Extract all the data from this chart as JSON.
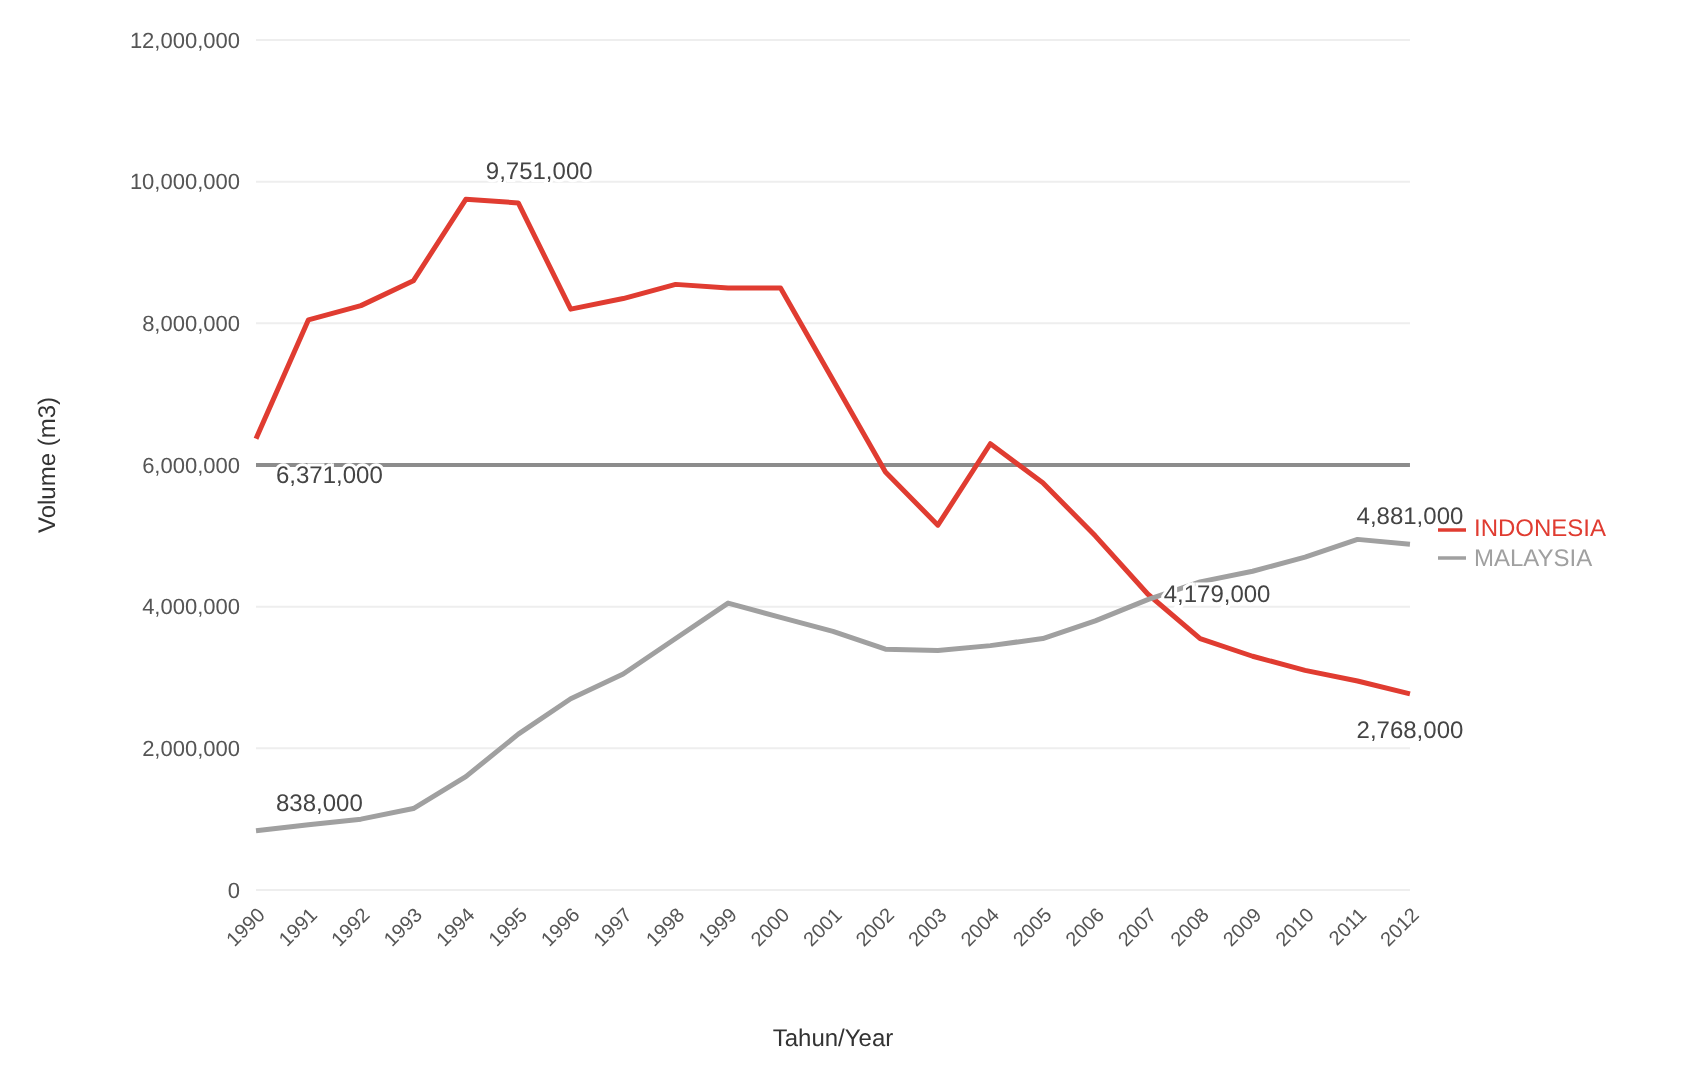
{
  "chart_data": {
    "type": "line",
    "xlabel": "Tahun/Year",
    "ylabel": "Volume (m3)",
    "categories": [
      "1990",
      "1991",
      "1992",
      "1993",
      "1994",
      "1995",
      "1996",
      "1997",
      "1998",
      "1999",
      "2000",
      "2001",
      "2002",
      "2003",
      "2004",
      "2005",
      "2006",
      "2007",
      "2008",
      "2009",
      "2010",
      "2011",
      "2012"
    ],
    "series": [
      {
        "name": "INDONESIA",
        "color": "#e03c31",
        "values": [
          6371000,
          8050000,
          8250000,
          8600000,
          9751000,
          9700000,
          8200000,
          8350000,
          8550000,
          8500000,
          8500000,
          7200000,
          5900000,
          5150000,
          6300000,
          5750000,
          5000000,
          4179000,
          3550000,
          3300000,
          3100000,
          2950000,
          2768000
        ],
        "value_labels": [
          "6,371,000",
          null,
          null,
          null,
          "9,751,000",
          null,
          null,
          null,
          null,
          null,
          null,
          null,
          null,
          null,
          null,
          null,
          null,
          "4,179,000",
          null,
          null,
          null,
          null,
          "2,768,000"
        ]
      },
      {
        "name": "MALAYSIA",
        "color": "#a0a0a0",
        "values": [
          838000,
          920000,
          1000000,
          1150000,
          1600000,
          2200000,
          2700000,
          3050000,
          3550000,
          4050000,
          3850000,
          3650000,
          3400000,
          3380000,
          3450000,
          3550000,
          3800000,
          4100000,
          4350000,
          4500000,
          4700000,
          4950000,
          4881000
        ],
        "value_labels": [
          "838,000",
          null,
          null,
          null,
          null,
          null,
          null,
          null,
          null,
          null,
          null,
          null,
          null,
          null,
          null,
          null,
          null,
          null,
          null,
          null,
          null,
          null,
          "4,881,000"
        ]
      }
    ],
    "ylim": [
      0,
      12000000
    ],
    "yticks": [
      {
        "value": 0,
        "label": "0"
      },
      {
        "value": 2000000,
        "label": "2,000,000"
      },
      {
        "value": 4000000,
        "label": "4,000,000"
      },
      {
        "value": 6000000,
        "label": "6,000,000"
      },
      {
        "value": 8000000,
        "label": "8,000,000"
      },
      {
        "value": 10000000,
        "label": "10,000,000"
      },
      {
        "value": 12000000,
        "label": "12,000,000"
      }
    ],
    "ref_lines": [
      {
        "axis": "y",
        "value": 6000000,
        "color": "#8c8c8c"
      }
    ],
    "grid": "y",
    "legend": "right",
    "marker": "none",
    "line_style": "solid"
  }
}
